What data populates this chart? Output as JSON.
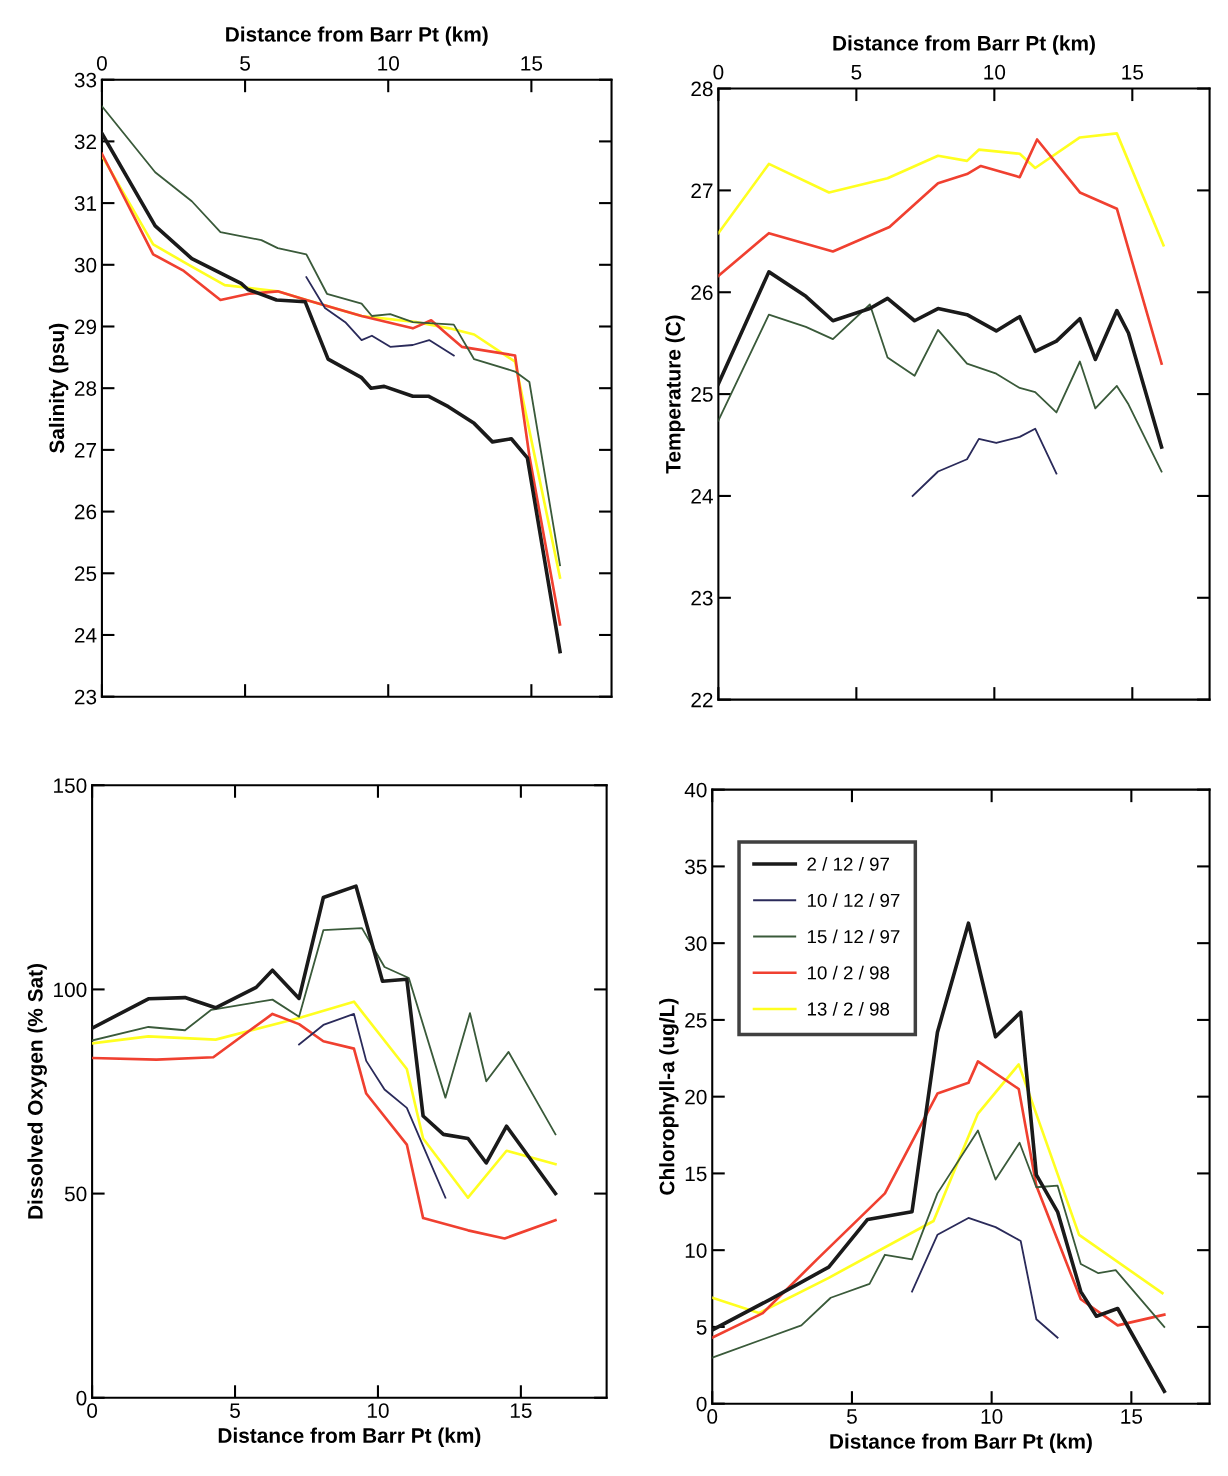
{
  "chart_data": [
    {
      "type": "line",
      "xlabel": "Distance from Barr Pt (km)",
      "ylabel": "Salinity (psu)",
      "xlim": [
        0,
        17.8
      ],
      "ylim": [
        23,
        33
      ],
      "xticks": [
        0,
        5,
        10,
        15
      ],
      "yticks": [
        23,
        24,
        25,
        26,
        27,
        28,
        29,
        30,
        31,
        32,
        33
      ],
      "grid": false,
      "legend": false,
      "series": [
        {
          "color": "#1a1a1a",
          "x": [
            0,
            1.86,
            3.14,
            4.86,
            5.1,
            6.1,
            7.1,
            7.9,
            9.07,
            9.4,
            9.86,
            10.86,
            11.4,
            12.1,
            13,
            13.64,
            14.3,
            14.86,
            16
          ],
          "values": [
            32.13,
            30.63,
            30.1,
            29.7,
            29.6,
            29.43,
            29.4,
            28.47,
            28.17,
            28.0,
            28.03,
            27.87,
            27.87,
            27.7,
            27.43,
            27.13,
            27.18,
            26.87,
            23.73
          ]
        },
        {
          "color": "#2a2a5a",
          "x": [
            7.14,
            7.79,
            8.5,
            9.07,
            9.43,
            10.07,
            10.86,
            11.43,
            12.29
          ],
          "values": [
            29.8,
            29.3,
            29.07,
            28.78,
            28.85,
            28.67,
            28.7,
            28.78,
            28.53
          ]
        },
        {
          "color": "#3a5a3a",
          "x": [
            0,
            1.86,
            3.14,
            4.14,
            5.57,
            6.14,
            7.14,
            7.86,
            9.07,
            9.43,
            10.07,
            10.86,
            12.29,
            13,
            14.43,
            14.93,
            16
          ],
          "values": [
            32.57,
            31.5,
            31.03,
            30.53,
            30.4,
            30.27,
            30.17,
            29.53,
            29.37,
            29.17,
            29.2,
            29.07,
            29.03,
            28.47,
            28.27,
            28.1,
            25.13
          ]
        },
        {
          "color": "#f04030",
          "x": [
            0,
            1.79,
            2.86,
            4.14,
            5.14,
            6.14,
            7.14,
            9.07,
            10.86,
            11.5,
            12,
            12.57,
            14.43,
            14.93,
            16
          ],
          "values": [
            31.8,
            30.17,
            29.9,
            29.43,
            29.53,
            29.57,
            29.43,
            29.17,
            28.97,
            29.1,
            28.9,
            28.67,
            28.53,
            26.9,
            24.17
          ]
        },
        {
          "color": "#ffff20",
          "x": [
            0,
            1.79,
            3.14,
            4.29,
            6.14,
            7.14,
            9.07,
            11,
            12.14,
            13,
            14.43,
            16
          ],
          "values": [
            31.77,
            30.33,
            29.97,
            29.67,
            29.57,
            29.43,
            29.17,
            29.07,
            28.97,
            28.87,
            28.43,
            24.93
          ]
        }
      ]
    },
    {
      "type": "line",
      "xlabel": "Distance from Barr Pt (km)",
      "ylabel": "Temperature (C)",
      "xlim": [
        0,
        17.8
      ],
      "ylim": [
        22,
        28
      ],
      "xticks": [
        0,
        5,
        10,
        15
      ],
      "yticks": [
        22,
        23,
        24,
        25,
        26,
        27,
        28
      ],
      "grid": false,
      "legend": false,
      "series": [
        {
          "color": "#1a1a1a",
          "x": [
            0,
            1.83,
            3.17,
            4.15,
            5.49,
            6.13,
            7.11,
            7.96,
            9.01,
            10.07,
            10.92,
            11.48,
            12.25,
            13.1,
            13.66,
            14.44,
            14.86,
            16.06
          ],
          "values": [
            25.1,
            26.2,
            25.96,
            25.72,
            25.84,
            25.94,
            25.72,
            25.84,
            25.78,
            25.62,
            25.76,
            25.42,
            25.52,
            25.74,
            25.34,
            25.82,
            25.6,
            24.48
          ]
        },
        {
          "color": "#2a2a5a",
          "x": [
            7.04,
            7.96,
            9.01,
            9.44,
            10.07,
            10.92,
            11.48,
            12.25
          ],
          "values": [
            24.0,
            24.24,
            24.36,
            24.56,
            24.52,
            24.58,
            24.66,
            24.22
          ]
        },
        {
          "color": "#3a5a3a",
          "x": [
            0,
            1.83,
            3.17,
            4.15,
            5.49,
            6.13,
            7.11,
            7.96,
            9.01,
            10.07,
            10.92,
            11.48,
            12.25,
            13.1,
            13.66,
            14.44,
            14.86,
            16.06
          ],
          "values": [
            24.74,
            25.78,
            25.66,
            25.54,
            25.88,
            25.36,
            25.18,
            25.63,
            25.3,
            25.2,
            25.06,
            25.02,
            24.82,
            25.32,
            24.86,
            25.08,
            24.9,
            24.24
          ]
        },
        {
          "color": "#f04030",
          "x": [
            0,
            1.83,
            4.15,
            6.2,
            7.96,
            9.01,
            9.51,
            10.92,
            11.55,
            13.1,
            14.44,
            16.06
          ],
          "values": [
            26.16,
            26.58,
            26.4,
            26.64,
            27.07,
            27.16,
            27.24,
            27.13,
            27.5,
            26.98,
            26.82,
            25.3
          ]
        },
        {
          "color": "#ffff20",
          "x": [
            0,
            1.83,
            4.01,
            6.13,
            7.96,
            9.01,
            9.44,
            10.92,
            11.48,
            13.1,
            14.44,
            16.13
          ],
          "values": [
            26.58,
            27.26,
            26.98,
            27.12,
            27.34,
            27.29,
            27.4,
            27.36,
            27.22,
            27.52,
            27.56,
            26.46
          ]
        }
      ]
    },
    {
      "type": "line",
      "xlabel": "Distance from Barr Pt (km)",
      "ylabel": "Dissolved Oxygen (% Sat)",
      "xlim": [
        0,
        18
      ],
      "ylim": [
        0,
        150
      ],
      "xticks": [
        0,
        5,
        10,
        15
      ],
      "yticks": [
        0,
        50,
        100,
        150
      ],
      "grid": false,
      "legend": false,
      "series": [
        {
          "color": "#1a1a1a",
          "x": [
            0,
            1.97,
            3.25,
            4.32,
            5.74,
            6.31,
            7.24,
            8.09,
            9.23,
            10.16,
            11.01,
            11.58,
            12.29,
            13.15,
            13.79,
            14.5,
            16.21
          ],
          "values": [
            90.5,
            97.7,
            98,
            95.5,
            100.5,
            104.7,
            97.8,
            122.5,
            125.3,
            102,
            102.5,
            69,
            64.5,
            63.5,
            57.5,
            66.5,
            50
          ]
        },
        {
          "color": "#2a2a5a",
          "x": [
            7.24,
            8.09,
            9.16,
            9.59,
            10.23,
            11.01,
            11.65,
            12.36
          ],
          "values": [
            86.5,
            91.3,
            94,
            82.5,
            75.5,
            71,
            60.5,
            49
          ]
        },
        {
          "color": "#3a5a3a",
          "x": [
            0,
            1.97,
            3.25,
            4.17,
            6.31,
            7.24,
            8.09,
            9.44,
            10.23,
            11.08,
            12.36,
            13.22,
            13.79,
            14.57,
            16.21
          ],
          "values": [
            87.5,
            90.8,
            90,
            95,
            97.5,
            93.3,
            114.5,
            115,
            105.5,
            102.8,
            73.5,
            94.2,
            77.5,
            84.7,
            64.5
          ]
        },
        {
          "color": "#f04030",
          "x": [
            0,
            2.25,
            4.24,
            6.31,
            7.24,
            8.09,
            9.16,
            9.59,
            11.01,
            11.58,
            13.15,
            14.43,
            16.21
          ],
          "values": [
            83.2,
            82.8,
            83.4,
            94,
            91.5,
            87.3,
            85.5,
            74.5,
            62,
            44,
            41,
            39,
            43.5
          ]
        },
        {
          "color": "#ffff20",
          "x": [
            0,
            1.97,
            4.32,
            7.24,
            9.16,
            11.01,
            11.58,
            13.15,
            14.5,
            16.21
          ],
          "values": [
            86.8,
            88.5,
            87.7,
            93,
            97,
            80.5,
            63.5,
            49,
            60.5,
            57.2
          ]
        }
      ]
    },
    {
      "type": "line",
      "xlabel": "Distance from Barr Pt (km)",
      "ylabel": "Chlorophyll-a (ug/L)",
      "xlim": [
        0,
        17.8
      ],
      "ylim": [
        0,
        40
      ],
      "xticks": [
        0,
        5,
        10,
        15
      ],
      "yticks": [
        0,
        5,
        10,
        15,
        20,
        25,
        30,
        35,
        40
      ],
      "grid": false,
      "legend": "top left",
      "series": [
        {
          "name": "2 / 12 / 97",
          "color": "#1a1a1a",
          "x": [
            0,
            2.08,
            4.17,
            5.56,
            7.15,
            8.06,
            9.17,
            10.14,
            11.04,
            11.6,
            12.36,
            13.19,
            13.75,
            14.51,
            16.18
          ],
          "values": [
            4.8,
            6.8,
            8.9,
            12.0,
            12.5,
            24.2,
            31.3,
            23.9,
            25.5,
            14.9,
            12.5,
            7.3,
            5.7,
            6.2,
            0.8
          ]
        },
        {
          "name": "10 / 12 / 97",
          "color": "#2a2a5a",
          "x": [
            7.15,
            8.06,
            9.17,
            10.14,
            11.04,
            11.6,
            12.36
          ],
          "values": [
            7.3,
            11.0,
            12.1,
            11.5,
            10.6,
            5.5,
            4.3
          ]
        },
        {
          "name": "15 / 12 / 97",
          "color": "#3a5a3a",
          "x": [
            0,
            3.19,
            4.24,
            5.63,
            6.18,
            7.15,
            8.06,
            9.51,
            10.14,
            11.0,
            11.6,
            12.36,
            13.19,
            13.82,
            14.44,
            16.18
          ],
          "values": [
            3.0,
            5.1,
            6.9,
            7.8,
            9.7,
            9.4,
            13.7,
            17.8,
            14.6,
            17.0,
            14.1,
            14.2,
            9.1,
            8.5,
            8.7,
            5.0
          ]
        },
        {
          "name": "10 / 2 / 98",
          "color": "#f04030",
          "x": [
            0,
            1.81,
            3.75,
            6.18,
            8.06,
            9.17,
            9.51,
            10.97,
            11.6,
            13.19,
            14.51,
            16.18
          ],
          "values": [
            4.3,
            5.9,
            9.4,
            13.7,
            20.2,
            20.9,
            22.3,
            20.5,
            14.2,
            6.8,
            5.1,
            5.8
          ]
        },
        {
          "name": "13 / 2 / 98",
          "color": "#ffff20",
          "x": [
            0,
            1.67,
            4.17,
            7.92,
            9.51,
            10.97,
            13.13,
            16.11
          ],
          "values": [
            6.9,
            5.9,
            8.2,
            11.9,
            18.9,
            22.1,
            11.0,
            7.2
          ]
        }
      ]
    }
  ]
}
